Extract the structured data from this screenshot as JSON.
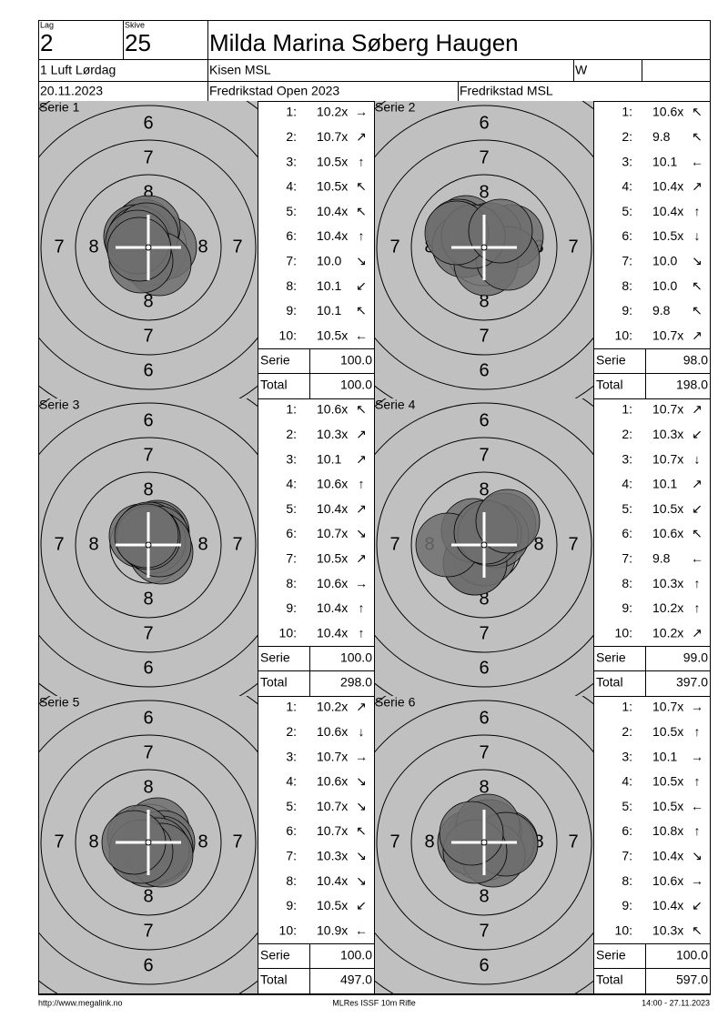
{
  "header": {
    "lag_label": "Lag",
    "lag": "2",
    "skive_label": "Skive",
    "skive": "25",
    "name": "Milda Marina Søberg Haugen",
    "class": "1 Luft Lørdag",
    "club": "Kisen MSL",
    "code": "W",
    "date": "20.11.2023",
    "event": "Fredrikstad Open 2023",
    "organizer": "Fredrikstad MSL"
  },
  "ring_labels": [
    "8",
    "7",
    "6"
  ],
  "series": [
    {
      "title": "Serie 1",
      "shots": [
        {
          "n": "1:",
          "score": "10.2x",
          "dir": "→"
        },
        {
          "n": "2:",
          "score": "10.7x",
          "dir": "↗"
        },
        {
          "n": "3:",
          "score": "10.5x",
          "dir": "↑"
        },
        {
          "n": "4:",
          "score": "10.5x",
          "dir": "↖"
        },
        {
          "n": "5:",
          "score": "10.4x",
          "dir": "↖"
        },
        {
          "n": "6:",
          "score": "10.4x",
          "dir": "↑"
        },
        {
          "n": "7:",
          "score": "10.0",
          "dir": "↘"
        },
        {
          "n": "8:",
          "score": "10.1",
          "dir": "↙"
        },
        {
          "n": "9:",
          "score": "10.1",
          "dir": "↖"
        },
        {
          "n": "10:",
          "score": "10.5x",
          "dir": "←"
        }
      ],
      "serie_label": "Serie",
      "serie": "100.0",
      "total_label": "Total",
      "total": "100.0"
    },
    {
      "title": "Serie 2",
      "shots": [
        {
          "n": "1:",
          "score": "10.6x",
          "dir": "↖"
        },
        {
          "n": "2:",
          "score": "9.8",
          "dir": "↖"
        },
        {
          "n": "3:",
          "score": "10.1",
          "dir": "←"
        },
        {
          "n": "4:",
          "score": "10.4x",
          "dir": "↗"
        },
        {
          "n": "5:",
          "score": "10.4x",
          "dir": "↑"
        },
        {
          "n": "6:",
          "score": "10.5x",
          "dir": "↓"
        },
        {
          "n": "7:",
          "score": "10.0",
          "dir": "↘"
        },
        {
          "n": "8:",
          "score": "10.0",
          "dir": "↖"
        },
        {
          "n": "9:",
          "score": "9.8",
          "dir": "↖"
        },
        {
          "n": "10:",
          "score": "10.7x",
          "dir": "↗"
        }
      ],
      "serie_label": "Serie",
      "serie": "98.0",
      "total_label": "Total",
      "total": "198.0"
    },
    {
      "title": "Serie 3",
      "shots": [
        {
          "n": "1:",
          "score": "10.6x",
          "dir": "↖"
        },
        {
          "n": "2:",
          "score": "10.3x",
          "dir": "↗"
        },
        {
          "n": "3:",
          "score": "10.1",
          "dir": "↗"
        },
        {
          "n": "4:",
          "score": "10.6x",
          "dir": "↑"
        },
        {
          "n": "5:",
          "score": "10.4x",
          "dir": "↗"
        },
        {
          "n": "6:",
          "score": "10.7x",
          "dir": "↘"
        },
        {
          "n": "7:",
          "score": "10.5x",
          "dir": "↗"
        },
        {
          "n": "8:",
          "score": "10.6x",
          "dir": "→"
        },
        {
          "n": "9:",
          "score": "10.4x",
          "dir": "↑"
        },
        {
          "n": "10:",
          "score": "10.4x",
          "dir": "↑"
        }
      ],
      "serie_label": "Serie",
      "serie": "100.0",
      "total_label": "Total",
      "total": "298.0"
    },
    {
      "title": "Serie 4",
      "shots": [
        {
          "n": "1:",
          "score": "10.7x",
          "dir": "↗"
        },
        {
          "n": "2:",
          "score": "10.3x",
          "dir": "↙"
        },
        {
          "n": "3:",
          "score": "10.7x",
          "dir": "↓"
        },
        {
          "n": "4:",
          "score": "10.1",
          "dir": "↗"
        },
        {
          "n": "5:",
          "score": "10.5x",
          "dir": "↙"
        },
        {
          "n": "6:",
          "score": "10.6x",
          "dir": "↖"
        },
        {
          "n": "7:",
          "score": "9.8",
          "dir": "←"
        },
        {
          "n": "8:",
          "score": "10.3x",
          "dir": "↑"
        },
        {
          "n": "9:",
          "score": "10.2x",
          "dir": "↑"
        },
        {
          "n": "10:",
          "score": "10.2x",
          "dir": "↗"
        }
      ],
      "serie_label": "Serie",
      "serie": "99.0",
      "total_label": "Total",
      "total": "397.0"
    },
    {
      "title": "Serie 5",
      "shots": [
        {
          "n": "1:",
          "score": "10.2x",
          "dir": "↗"
        },
        {
          "n": "2:",
          "score": "10.6x",
          "dir": "↓"
        },
        {
          "n": "3:",
          "score": "10.7x",
          "dir": "→"
        },
        {
          "n": "4:",
          "score": "10.6x",
          "dir": "↘"
        },
        {
          "n": "5:",
          "score": "10.7x",
          "dir": "↘"
        },
        {
          "n": "6:",
          "score": "10.7x",
          "dir": "↖"
        },
        {
          "n": "7:",
          "score": "10.3x",
          "dir": "↘"
        },
        {
          "n": "8:",
          "score": "10.4x",
          "dir": "↘"
        },
        {
          "n": "9:",
          "score": "10.5x",
          "dir": "↙"
        },
        {
          "n": "10:",
          "score": "10.9x",
          "dir": "←"
        }
      ],
      "serie_label": "Serie",
      "serie": "100.0",
      "total_label": "Total",
      "total": "497.0"
    },
    {
      "title": "Serie 6",
      "shots": [
        {
          "n": "1:",
          "score": "10.7x",
          "dir": "→"
        },
        {
          "n": "2:",
          "score": "10.5x",
          "dir": "↑"
        },
        {
          "n": "3:",
          "score": "10.1",
          "dir": "→"
        },
        {
          "n": "4:",
          "score": "10.5x",
          "dir": "↑"
        },
        {
          "n": "5:",
          "score": "10.5x",
          "dir": "←"
        },
        {
          "n": "6:",
          "score": "10.8x",
          "dir": "↑"
        },
        {
          "n": "7:",
          "score": "10.4x",
          "dir": "↘"
        },
        {
          "n": "8:",
          "score": "10.6x",
          "dir": "→"
        },
        {
          "n": "9:",
          "score": "10.4x",
          "dir": "↙"
        },
        {
          "n": "10:",
          "score": "10.3x",
          "dir": "↖"
        }
      ],
      "serie_label": "Serie",
      "serie": "100.0",
      "total_label": "Total",
      "total": "597.0"
    }
  ],
  "footer": {
    "url": "http://www.megalink.no",
    "program": "MLRes ISSF 10m Rifle",
    "printed": "14:00 - 27.11.2023"
  }
}
